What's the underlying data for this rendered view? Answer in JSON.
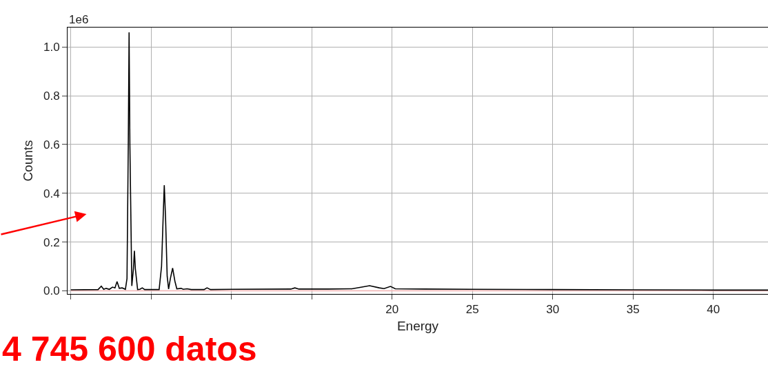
{
  "chart_data": {
    "type": "line",
    "xlabel": "Energy",
    "ylabel": "Counts",
    "annotations": [
      "1e6",
      "4 745 600 datos"
    ],
    "xlim": [
      -0.2,
      43.4
    ],
    "ylim": [
      -0.013,
      1.08
    ],
    "xticks": [
      {
        "value": 0,
        "label": null
      },
      {
        "value": 5,
        "label": null
      },
      {
        "value": 10,
        "label": null
      },
      {
        "value": 15,
        "label": null
      },
      20,
      25,
      30,
      35,
      40
    ],
    "yticks": [
      {
        "value": 0,
        "label": "0.0"
      },
      {
        "value": 0.2,
        "label": "0.2"
      },
      {
        "value": 0.4,
        "label": "0.4"
      },
      {
        "value": 0.6,
        "label": "0.6"
      },
      {
        "value": 0.8,
        "label": "0.8"
      },
      {
        "value": 1.0,
        "label": "1.0"
      }
    ],
    "grid": true,
    "marker": "none",
    "line_style": "solid",
    "series": [
      {
        "color": "#000000",
        "x": [
          0,
          1.7,
          1.9,
          2.05,
          2.2,
          2.4,
          2.6,
          2.75,
          2.88,
          3.02,
          3.2,
          3.4,
          3.5,
          3.58,
          3.63,
          3.68,
          3.8,
          3.9,
          3.96,
          4.02,
          4.16,
          4.3,
          4.45,
          4.6,
          5.5,
          5.65,
          5.75,
          5.82,
          5.9,
          6.0,
          6.09,
          6.2,
          6.34,
          6.48,
          6.6,
          6.87,
          7.0,
          7.24,
          7.5,
          8.3,
          8.48,
          8.7,
          10,
          13.7,
          13.95,
          14.2,
          16,
          17.5,
          18.0,
          18.6,
          19.2,
          19.5,
          19.9,
          20.2,
          22,
          25,
          30,
          35,
          40,
          43.4
        ],
        "values": [
          0.004,
          0.005,
          0.019,
          0.006,
          0.01,
          0.006,
          0.015,
          0.012,
          0.038,
          0.01,
          0.012,
          0.006,
          0.05,
          0.6,
          1.06,
          0.6,
          0.02,
          0.09,
          0.164,
          0.09,
          0.005,
          0.006,
          0.012,
          0.005,
          0.005,
          0.1,
          0.3,
          0.433,
          0.3,
          0.06,
          0.007,
          0.05,
          0.093,
          0.04,
          0.008,
          0.01,
          0.006,
          0.008,
          0.005,
          0.005,
          0.012,
          0.005,
          0.006,
          0.007,
          0.012,
          0.007,
          0.007,
          0.008,
          0.014,
          0.021,
          0.012,
          0.009,
          0.018,
          0.008,
          0.007,
          0.006,
          0.005,
          0.004,
          0.003,
          0.003
        ]
      },
      {
        "color": "#f2b8b8",
        "x": [
          0,
          43.4
        ],
        "values": [
          0,
          0
        ]
      }
    ]
  }
}
